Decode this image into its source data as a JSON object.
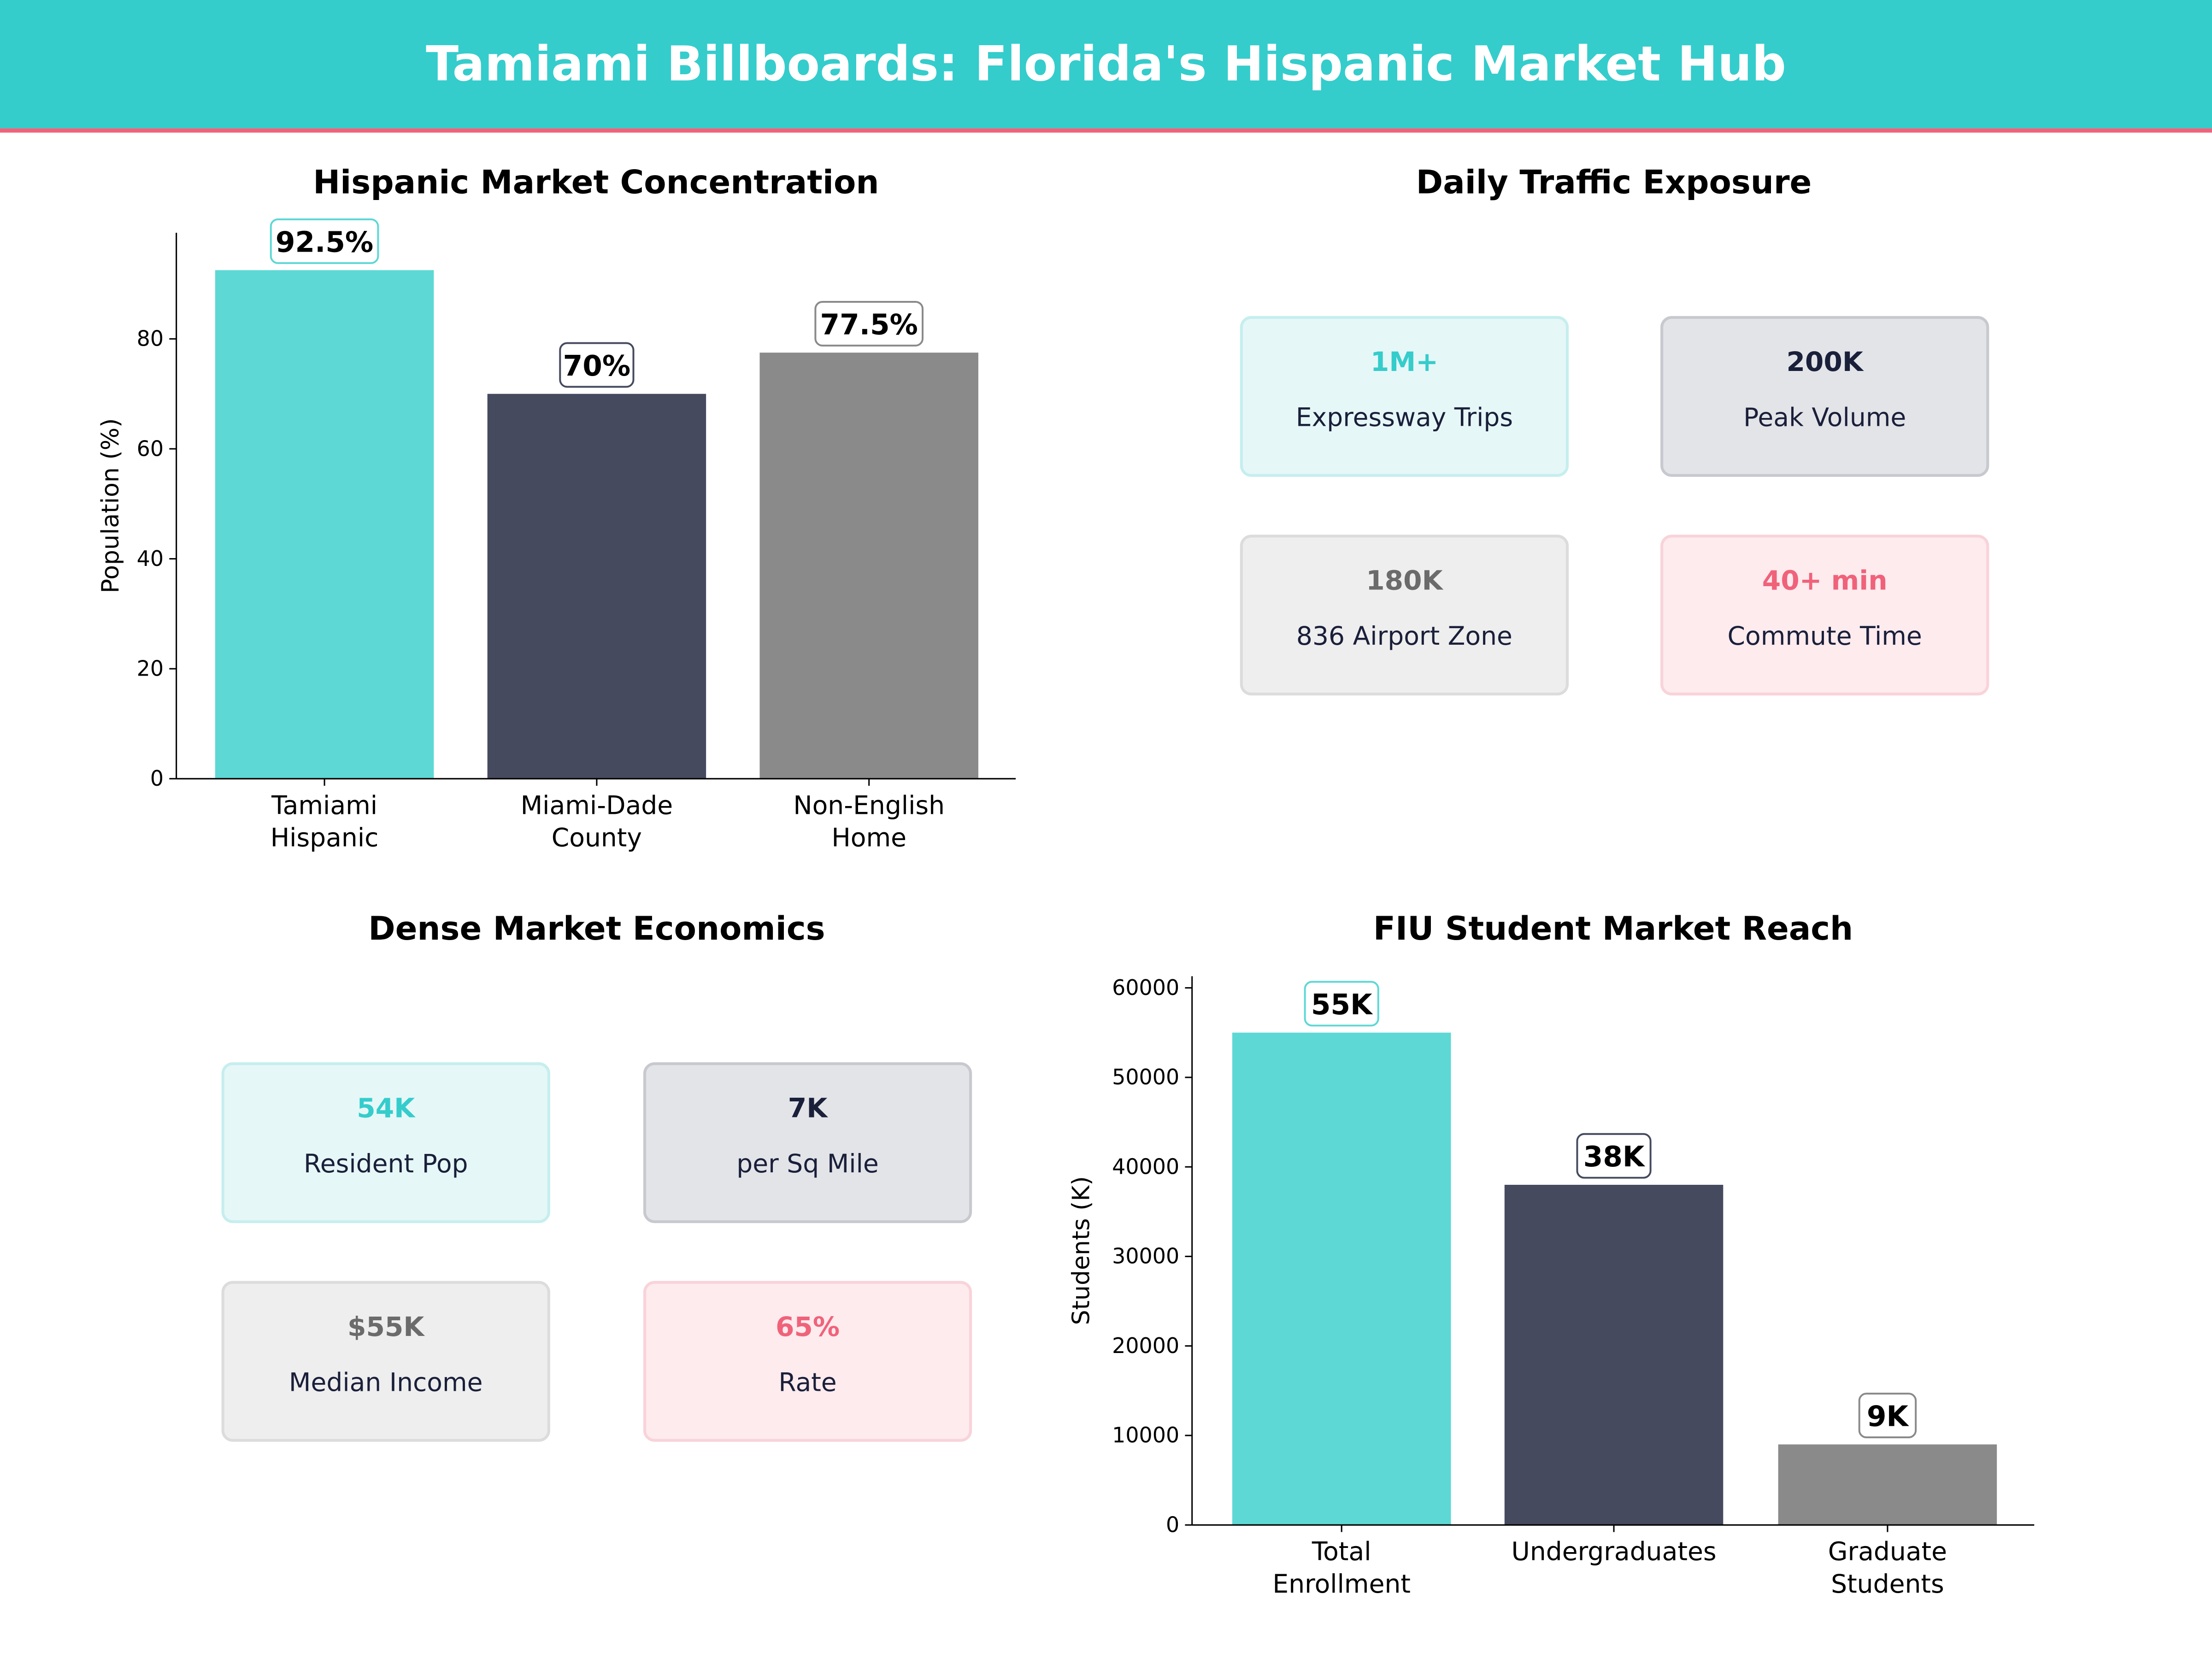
{
  "header": {
    "title": "Tamiami Billboards: Florida's Hispanic Market Hub",
    "bg_color": "#35CCCC",
    "accent_color": "#F0627A"
  },
  "chart_data": [
    {
      "type": "bar",
      "title": "Hispanic Market Concentration",
      "ylabel": "Population (%)",
      "categories": [
        "Tamiami\nHispanic",
        "Miami-Dade\nCounty",
        "Non-English\nHome"
      ],
      "values": [
        92.5,
        70,
        77.5
      ],
      "data_labels": [
        "92.5%",
        "70%",
        "77.5%"
      ],
      "colors": [
        "#5DD8D5",
        "#454A5F",
        "#8A8A8A"
      ],
      "ylim": [
        0,
        99.3
      ],
      "yticks": [
        0,
        20,
        40,
        60,
        80
      ],
      "grid": false
    },
    {
      "type": "bar",
      "title": "FIU Student Market Reach",
      "ylabel": "Students (K)",
      "categories": [
        "Total\nEnrollment",
        "Undergraduates",
        "Graduate\nStudents"
      ],
      "values": [
        55000,
        38000,
        9000
      ],
      "data_labels": [
        "55K",
        "38K",
        "9K"
      ],
      "colors": [
        "#5DD8D5",
        "#454A5F",
        "#8A8A8A"
      ],
      "ylim": [
        0,
        61300
      ],
      "yticks": [
        0,
        10000,
        20000,
        30000,
        40000,
        50000,
        60000
      ],
      "grid": false
    }
  ],
  "traffic": {
    "title": "Daily Traffic Exposure",
    "cards": [
      {
        "value": "1M+",
        "label": "Expressway Trips",
        "style": "teal"
      },
      {
        "value": "200K",
        "label": "Peak Volume",
        "style": "dark"
      },
      {
        "value": "180K",
        "label": "836 Airport Zone",
        "style": "gray"
      },
      {
        "value": "40+ min",
        "label": "Commute Time",
        "style": "pink"
      }
    ]
  },
  "economics": {
    "title": "Dense Market Economics",
    "cards": [
      {
        "value": "54K",
        "label": "Resident Pop",
        "style": "teal"
      },
      {
        "value": "7K",
        "label": "per Sq Mile",
        "style": "dark"
      },
      {
        "value": "$55K",
        "label": "Median Income",
        "style": "gray"
      },
      {
        "value": "65%",
        "label": "Rate",
        "style": "pink"
      }
    ]
  },
  "card_styles": {
    "teal": {
      "bg": "#E6F7F7",
      "border": "#C6EEEE",
      "text": "#35CCCC"
    },
    "dark": {
      "bg": "#E3E4E8",
      "border": "#C8C9CF",
      "text": "#1A1F3A"
    },
    "gray": {
      "bg": "#EEEEEE",
      "border": "#DCDCDC",
      "text": "#6B6B6B"
    },
    "pink": {
      "bg": "#FDEBEE",
      "border": "#F9D3DA",
      "text": "#F0627A"
    }
  }
}
